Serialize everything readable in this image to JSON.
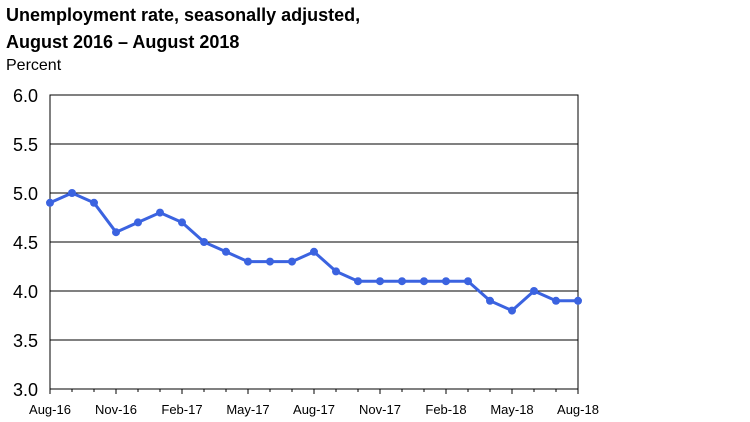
{
  "chart_data": {
    "type": "line",
    "title_line1": "Unemployment rate, seasonally adjusted,",
    "title_line2": "August 2016 – August 2018",
    "ylabel": "Percent",
    "xlabel": "",
    "ylim": [
      3.0,
      6.0
    ],
    "yticks": [
      "3.0",
      "3.5",
      "4.0",
      "4.5",
      "5.0",
      "5.5",
      "6.0"
    ],
    "x_tick_labels": [
      "Aug-16",
      "Nov-16",
      "Feb-17",
      "May-17",
      "Aug-17",
      "Nov-17",
      "Feb-18",
      "May-18",
      "Aug-18"
    ],
    "x": [
      "Aug-16",
      "Sep-16",
      "Oct-16",
      "Nov-16",
      "Dec-16",
      "Jan-17",
      "Feb-17",
      "Mar-17",
      "Apr-17",
      "May-17",
      "Jun-17",
      "Jul-17",
      "Aug-17",
      "Sep-17",
      "Oct-17",
      "Nov-17",
      "Dec-17",
      "Jan-18",
      "Feb-18",
      "Mar-18",
      "Apr-18",
      "May-18",
      "Jun-18",
      "Jul-18",
      "Aug-18"
    ],
    "values": [
      4.9,
      5.0,
      4.9,
      4.6,
      4.7,
      4.8,
      4.7,
      4.5,
      4.4,
      4.3,
      4.3,
      4.3,
      4.4,
      4.2,
      4.1,
      4.1,
      4.1,
      4.1,
      4.1,
      4.1,
      3.9,
      3.8,
      4.0,
      3.9,
      3.9
    ],
    "line_color": "#3b63e0",
    "grid": true,
    "legend": "none"
  }
}
